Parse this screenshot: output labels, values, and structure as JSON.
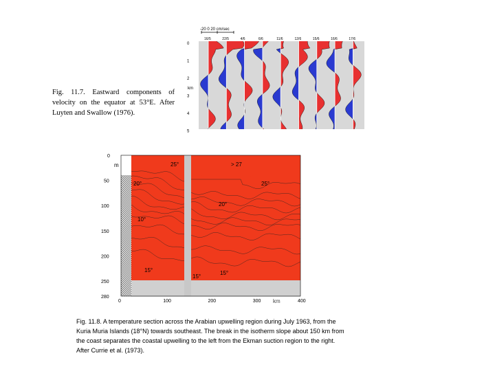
{
  "fig_11_7": {
    "caption": "Fig. 11.7.   Eastward  components of velocity on the equator at 53°E. After Luyten and Swallow (1976).",
    "scale_label": "-20   0   20 cm/sec",
    "depth_unit": "km",
    "depth_ticks": [
      "0",
      "1",
      "2",
      "3",
      "4",
      "5"
    ],
    "dates": [
      "16/5",
      "22/5",
      "4/6",
      "6/6",
      "11/6",
      "12/6",
      "15/6",
      "16/6",
      "17/6"
    ],
    "colors": {
      "east": "#e83030",
      "west": "#2a3ad0",
      "background": "#d8d8d8"
    }
  },
  "fig_11_8": {
    "caption": "Fig. 11.8.   A temperature section across the Arabian upwelling region during July 1963, from the Kuria Muria Islands (18°N) towards southeast. The break in the isotherm slope about 150 km from the coast separates the coastal upwelling to the left from the Ekman suction region to the right. After Currie et al. (1973).",
    "depth_unit": "m",
    "depth_ticks": [
      "0",
      "50",
      "100",
      "150",
      "200",
      "250",
      "280"
    ],
    "distance_ticks": [
      "0",
      "100",
      "200",
      "300",
      "400"
    ],
    "distance_unit": "km",
    "isotherm_labels": [
      "25°",
      "> 27",
      "20°",
      "25°",
      "20°",
      "10°",
      "15°",
      "15°",
      "15°"
    ],
    "colors": [
      "#f03a1c",
      "#ffb000",
      "#ffe000",
      "#b8ee10",
      "#38d838",
      "#20c8a0",
      "#60e8e8",
      "#2090f0",
      "#3050e0",
      "#7a40e0",
      "#b040e0",
      "#f050f0"
    ]
  }
}
